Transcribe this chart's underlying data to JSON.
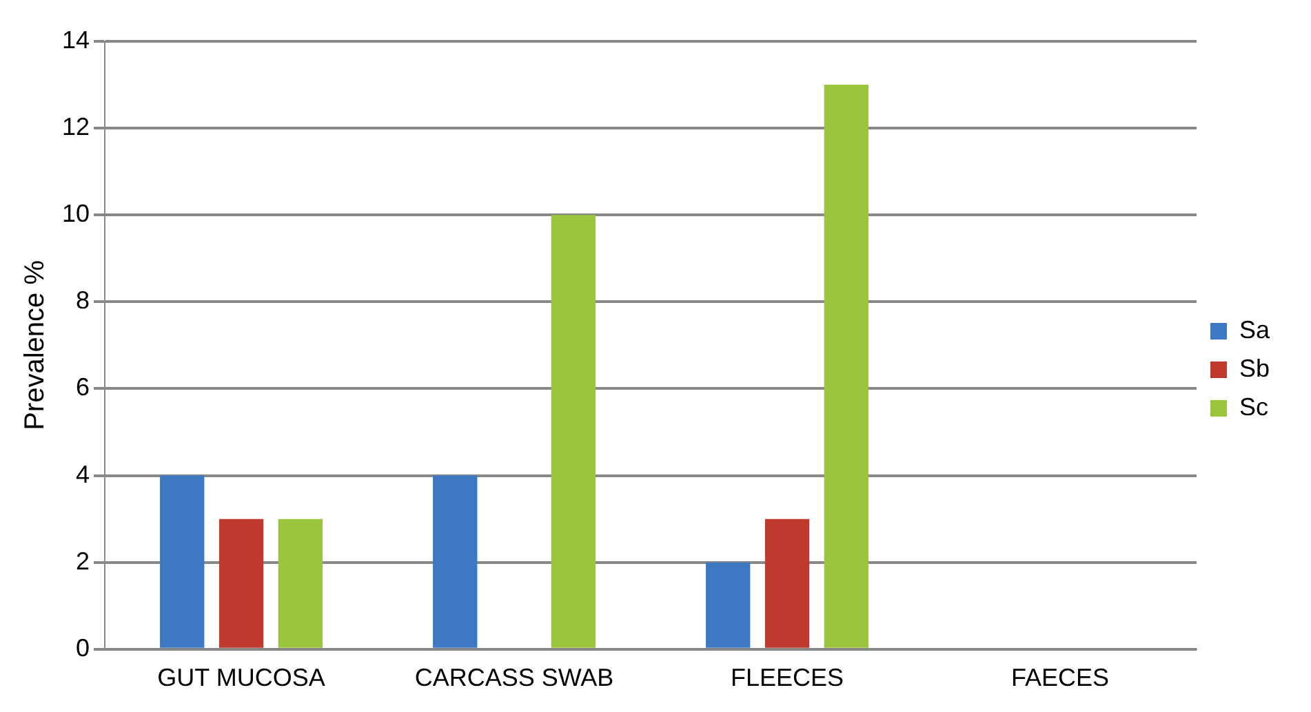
{
  "chart_data": {
    "type": "bar",
    "ylabel": "Prevalence %",
    "categories": [
      "GUT MUCOSA",
      "CARCASS SWAB",
      "FLEECES",
      "FAECES"
    ],
    "series": [
      {
        "name": "Sa",
        "color": "#3f78c2",
        "values": [
          4,
          4,
          2,
          0
        ]
      },
      {
        "name": "Sb",
        "color": "#c0392f",
        "values": [
          3,
          0,
          3,
          0
        ]
      },
      {
        "name": "Sc",
        "color": "#9bc53d",
        "values": [
          3,
          10,
          13,
          0
        ]
      }
    ],
    "ylim": [
      0,
      14
    ],
    "yticks": [
      0,
      2,
      4,
      6,
      8,
      10,
      12,
      14
    ],
    "grid": "y",
    "legend": "right"
  }
}
